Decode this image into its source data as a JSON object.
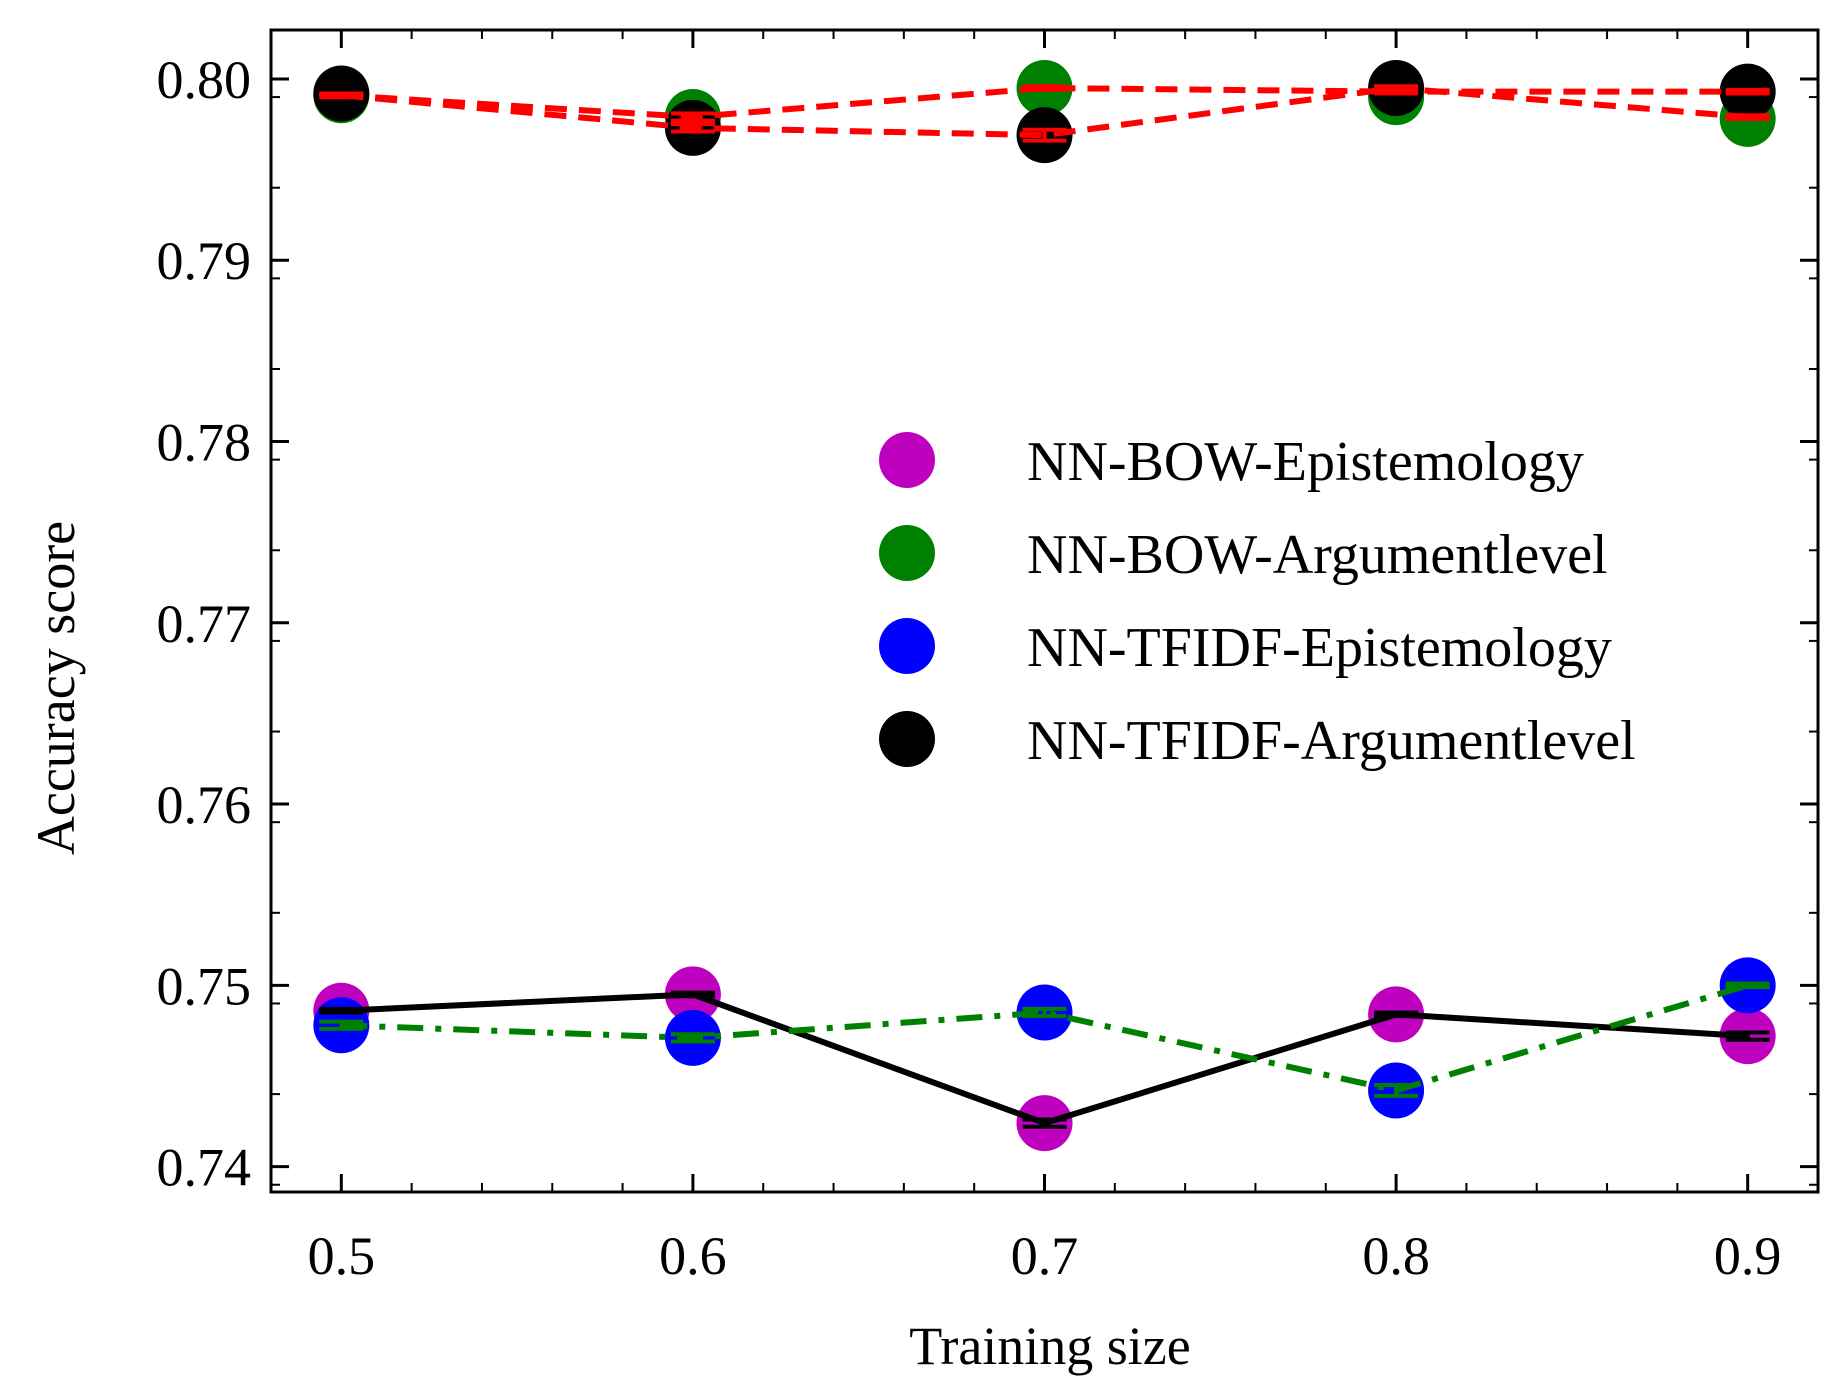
{
  "chart_data": {
    "type": "scatter",
    "title": "",
    "xlabel": "Training size",
    "ylabel": "Accuracy score",
    "xlim": [
      0.48,
      0.92
    ],
    "ylim": [
      0.7386,
      0.8027
    ],
    "x_ticks": [
      0.5,
      0.6,
      0.7,
      0.8,
      0.9
    ],
    "x_tick_labels": [
      "0.5",
      "0.6",
      "0.7",
      "0.8",
      "0.9"
    ],
    "y_ticks": [
      0.74,
      0.75,
      0.76,
      0.77,
      0.78,
      0.79,
      0.8
    ],
    "y_tick_labels": [
      "0.74",
      "0.75",
      "0.76",
      "0.77",
      "0.78",
      "0.79",
      "0.80"
    ],
    "grid": false,
    "legend_position": "center-right",
    "x": [
      0.5,
      0.6,
      0.7,
      0.8,
      0.9
    ],
    "series": [
      {
        "name": "NN-BOW-Epistemology",
        "color": "#bf00bf",
        "values": [
          0.7486,
          0.7495,
          0.7424,
          0.7484,
          0.7472
        ]
      },
      {
        "name": "NN-BOW-Argumentlevel",
        "color": "#008000",
        "values": [
          0.7991,
          0.7979,
          0.7995,
          0.799,
          0.7978
        ]
      },
      {
        "name": "NN-TFIDF-Epistemology",
        "color": "#0000ff",
        "values": [
          0.7478,
          0.7471,
          0.7485,
          0.7442,
          0.75
        ]
      },
      {
        "name": "NN-TFIDF-Argumentlevel",
        "color": "#000000",
        "values": [
          0.7992,
          0.7973,
          0.7969,
          0.7995,
          0.7993
        ]
      }
    ],
    "lines": [
      {
        "color": "#000000",
        "style": "solid",
        "values": [
          0.7486,
          0.7495,
          0.7424,
          0.7484,
          0.7472
        ],
        "errors": [
          0.0001,
          0.0001,
          0.0002,
          0.0001,
          0.0002
        ]
      },
      {
        "color": "#008000",
        "style": "dashdot",
        "values": [
          0.7478,
          0.7471,
          0.7485,
          0.7442,
          0.75
        ],
        "errors": [
          0.0002,
          0.0002,
          0.0002,
          0.0003,
          0.0001
        ]
      },
      {
        "color": "#ff0000",
        "style": "dashed",
        "values": [
          0.7991,
          0.7979,
          0.7995,
          0.7993,
          0.7993
        ],
        "errors": [
          0.0001,
          0.0002,
          0.0001,
          0.0001,
          0.0001
        ]
      },
      {
        "color": "#ff0000",
        "style": "dashed",
        "values": [
          0.7991,
          0.7973,
          0.7969,
          0.7995,
          0.7979
        ],
        "errors": [
          0.0001,
          0.0002,
          0.0003,
          0.0001,
          0.0001
        ]
      }
    ]
  }
}
